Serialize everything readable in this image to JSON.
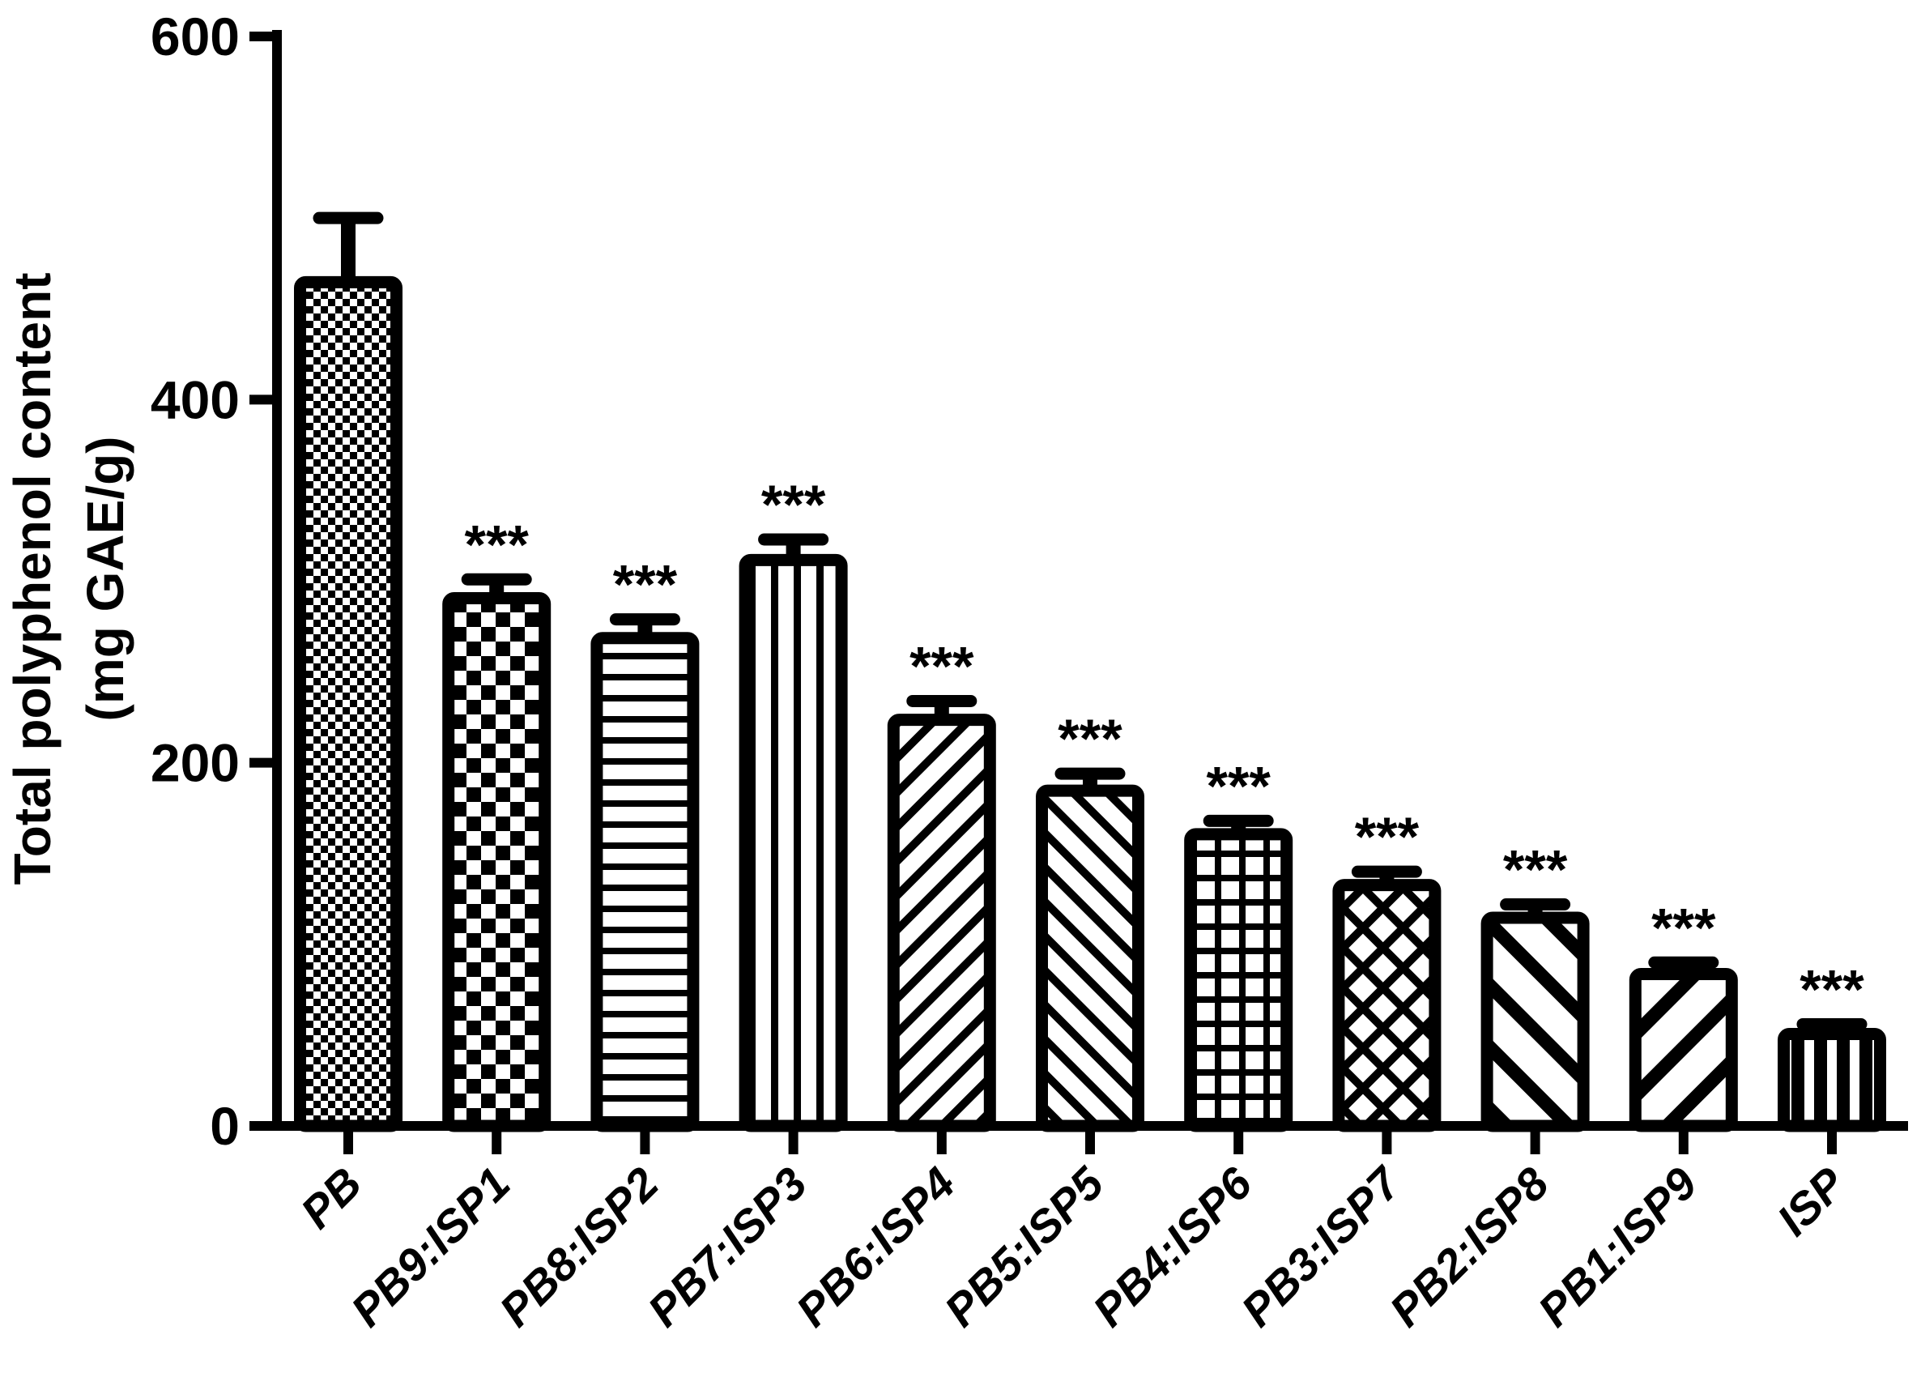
{
  "figure": {
    "background": "#ffffff",
    "ink": "#000000"
  },
  "chart_data": {
    "type": "bar",
    "title": "",
    "ylabel_lines": [
      "Total polyphenol content",
      "(mg GAE/g)"
    ],
    "xlabel": "",
    "ylim": [
      0,
      600
    ],
    "yticks": [
      0,
      200,
      400,
      600
    ],
    "grid": false,
    "legend_position": "none",
    "categories": [
      "PB",
      "PB9:ISP1",
      "PB8:ISP2",
      "PB7:ISP3",
      "PB6:ISP4",
      "PB5:ISP5",
      "PB4:ISP6",
      "PB3:ISP7",
      "PB2:ISP8",
      "PB1:ISP9",
      "ISP"
    ],
    "series": [
      {
        "name": "Total polyphenol content (mg GAE/g)",
        "values": [
          468,
          294,
          272,
          315,
          227,
          188,
          164,
          136,
          118,
          87,
          54
        ]
      }
    ],
    "errors": [
      32,
      7,
      7,
      8,
      7,
      6,
      4,
      4,
      4,
      3,
      2
    ],
    "significance": [
      "",
      "***",
      "***",
      "***",
      "***",
      "***",
      "***",
      "***",
      "***",
      "***",
      "***"
    ],
    "bar_patterns": [
      "checker-fine",
      "checker-coarse",
      "stripes-horizontal",
      "stripes-vertical",
      "diag-up-dense",
      "diag-down-dense",
      "grid",
      "crosshatch-diamond",
      "diag-down-wide",
      "diag-up-wide",
      "stripes-vertical-wide"
    ],
    "colors": {
      "bar_outline": "#000000",
      "bar_fill_background": "#ffffff",
      "pattern_ink": "#000000",
      "axis": "#000000",
      "text": "#000000"
    }
  }
}
